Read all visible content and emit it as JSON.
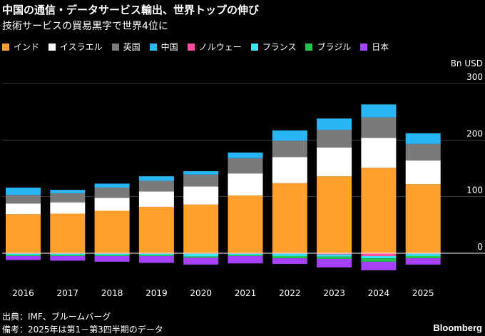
{
  "title": "中国の通信・データサービス輸出、世界トップの伸び",
  "subtitle": "技術サービスの貿易黒字で世界4位に",
  "footer": {
    "source": "出典：IMF、ブルームバーグ",
    "note": "備考：2025年は第1－第3四半期のデータ",
    "brand": "Bloomberg"
  },
  "chart_data": {
    "type": "bar",
    "stacked": true,
    "unit_label": "Bn USD",
    "categories": [
      "2016",
      "2017",
      "2018",
      "2019",
      "2020",
      "2021",
      "2022",
      "2023",
      "2024",
      "2025"
    ],
    "ylim": [
      -30,
      300
    ],
    "yticks": [
      0,
      100,
      200,
      300
    ],
    "series": [
      {
        "name": "インド",
        "color": "#ff9f2e",
        "values": [
          69,
          70,
          75,
          82,
          86,
          102,
          124,
          136,
          151,
          122
        ]
      },
      {
        "name": "イスラエル",
        "color": "#ffffff",
        "values": [
          19,
          20,
          23,
          27,
          32,
          39,
          46,
          51,
          53,
          42
        ]
      },
      {
        "name": "英国",
        "color": "#7a7a7a",
        "values": [
          15,
          16,
          18,
          19,
          21,
          27,
          29,
          31,
          36,
          29
        ]
      },
      {
        "name": "中国",
        "color": "#2ab6f5",
        "values": [
          13,
          6,
          7,
          8,
          6,
          10,
          18,
          20,
          23,
          19
        ]
      },
      {
        "name": "ノルウェー",
        "color": "#ff4fa3",
        "values": [
          -1,
          -1,
          -1,
          -1,
          -1,
          -1,
          -1,
          -2,
          -5,
          -1
        ]
      },
      {
        "name": "フランス",
        "color": "#39e4f2",
        "values": [
          -2,
          -2,
          -2,
          -2,
          -5,
          -2,
          -4,
          -4,
          -4,
          -4
        ]
      },
      {
        "name": "ブラジル",
        "color": "#1fc34e",
        "values": [
          -2,
          -2,
          -2,
          -2,
          -2,
          -2,
          -4,
          -4,
          -6,
          -4
        ]
      },
      {
        "name": "日本",
        "color": "#a641ff",
        "values": [
          -7,
          -8,
          -10,
          -12,
          -12,
          -13,
          -10,
          -15,
          -15,
          -11
        ]
      }
    ]
  }
}
